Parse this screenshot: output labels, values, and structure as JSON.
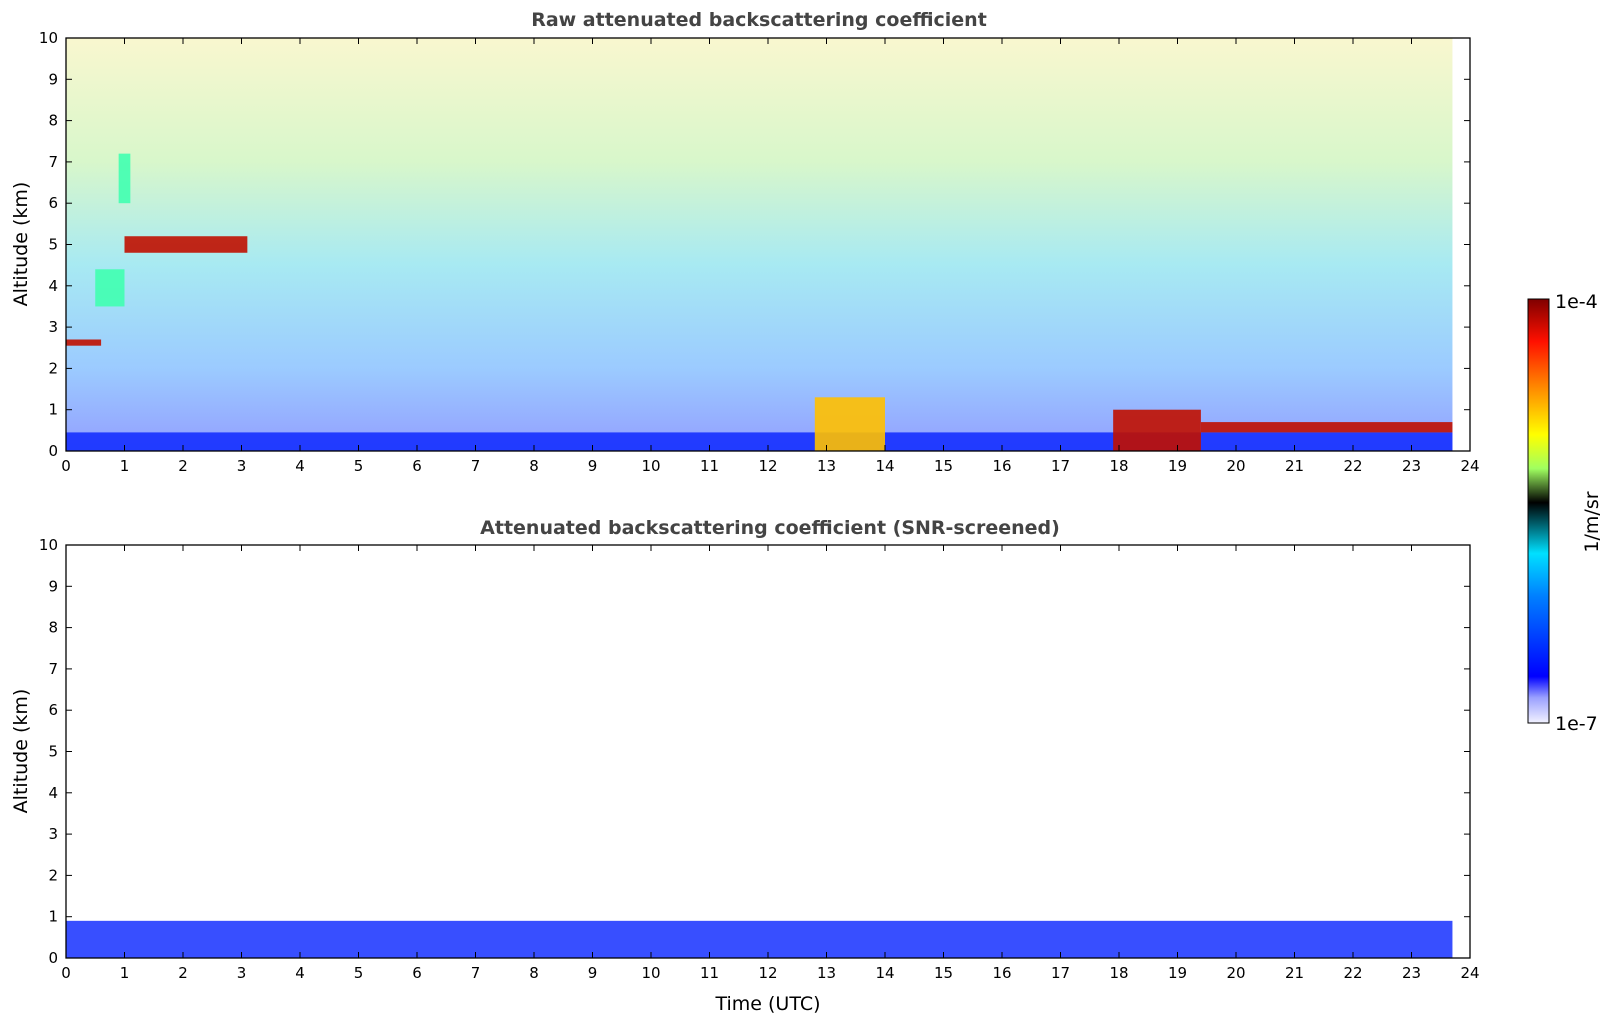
{
  "chart_data": [
    {
      "type": "heatmap",
      "title": "Raw attenuated backscattering coefficient",
      "xlabel": "",
      "ylabel": "Altitude (km)",
      "xlim": [
        0,
        24
      ],
      "ylim": [
        0,
        10
      ],
      "xticks": [
        "0",
        "1",
        "2",
        "3",
        "4",
        "5",
        "6",
        "7",
        "8",
        "9",
        "10",
        "11",
        "12",
        "13",
        "14",
        "15",
        "16",
        "17",
        "18",
        "19",
        "20",
        "21",
        "22",
        "23",
        "24"
      ],
      "yticks": [
        "0",
        "1",
        "2",
        "3",
        "4",
        "5",
        "6",
        "7",
        "8",
        "9",
        "10"
      ],
      "grid": false,
      "data_end_hour": 23.7,
      "features": [
        {
          "time_start": 0.0,
          "time_end": 23.7,
          "alt_bottom": 0.0,
          "alt_top": 0.45,
          "level": "low"
        },
        {
          "time_start": 0.0,
          "time_end": 0.6,
          "alt_bottom": 2.55,
          "alt_top": 2.7,
          "level": "high"
        },
        {
          "time_start": 1.0,
          "time_end": 3.1,
          "alt_bottom": 4.8,
          "alt_top": 5.2,
          "level": "high"
        },
        {
          "time_start": 0.9,
          "time_end": 1.1,
          "alt_bottom": 6.0,
          "alt_top": 7.2,
          "level": "mid"
        },
        {
          "time_start": 0.5,
          "time_end": 1.0,
          "alt_bottom": 3.5,
          "alt_top": 4.4,
          "level": "mid"
        },
        {
          "time_start": 12.8,
          "time_end": 14.0,
          "alt_bottom": 0.0,
          "alt_top": 1.3,
          "level": "mid-high"
        },
        {
          "time_start": 17.9,
          "time_end": 19.4,
          "alt_bottom": 0.0,
          "alt_top": 1.0,
          "level": "high"
        },
        {
          "time_start": 19.4,
          "time_end": 23.7,
          "alt_bottom": 0.45,
          "alt_top": 0.7,
          "level": "high"
        }
      ]
    },
    {
      "type": "heatmap",
      "title": "Attenuated backscattering coefficient (SNR-screened)",
      "xlabel": "Time (UTC)",
      "ylabel": "Altitude (km)",
      "xlim": [
        0,
        24
      ],
      "ylim": [
        0,
        10
      ],
      "xticks": [
        "0",
        "1",
        "2",
        "3",
        "4",
        "5",
        "6",
        "7",
        "8",
        "9",
        "10",
        "11",
        "12",
        "13",
        "14",
        "15",
        "16",
        "17",
        "18",
        "19",
        "20",
        "21",
        "22",
        "23",
        "24"
      ],
      "yticks": [
        "0",
        "1",
        "2",
        "3",
        "4",
        "5",
        "6",
        "7",
        "8",
        "9",
        "10"
      ],
      "grid": false,
      "data_end_hour": 23.7
    }
  ],
  "colorbar": {
    "label": "1/m/sr",
    "max_label": "1e-4",
    "min_label": "1e-7",
    "colormap": "jet"
  }
}
